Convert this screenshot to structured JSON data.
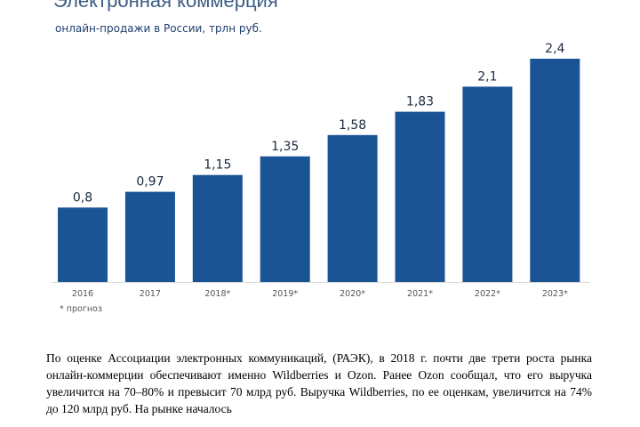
{
  "chart_data": {
    "type": "bar",
    "title": "Электронная коммерция",
    "subtitle": "онлайн-продажи в России, трлн руб.",
    "categories": [
      "2016",
      "2017",
      "2018*",
      "2019*",
      "2020*",
      "2021*",
      "2022*",
      "2023*"
    ],
    "values": [
      0.8,
      0.97,
      1.15,
      1.35,
      1.58,
      1.83,
      2.1,
      2.4
    ],
    "value_labels": [
      "0,8",
      "0,97",
      "1,15",
      "1,35",
      "1,58",
      "1,83",
      "2,1",
      "2,4"
    ],
    "ylim": [
      0,
      2.4
    ],
    "grid": false,
    "bar_color": "#1a5494",
    "note": "* прогноз"
  },
  "body_text": "По оценке Ассоциации электронных коммуникаций, (РАЭК), в 2018 г. почти две трети роста рынка онлайн-коммерции обеспечивают именно Wildberries и Ozon. Ранее Ozon сообщал, что его выручка увеличится на 70–80% и превысит 70 млрд руб. Выручка Wildberries, по ее оценкам, увеличится на 74% до 120 млрд руб. На рынке началось"
}
